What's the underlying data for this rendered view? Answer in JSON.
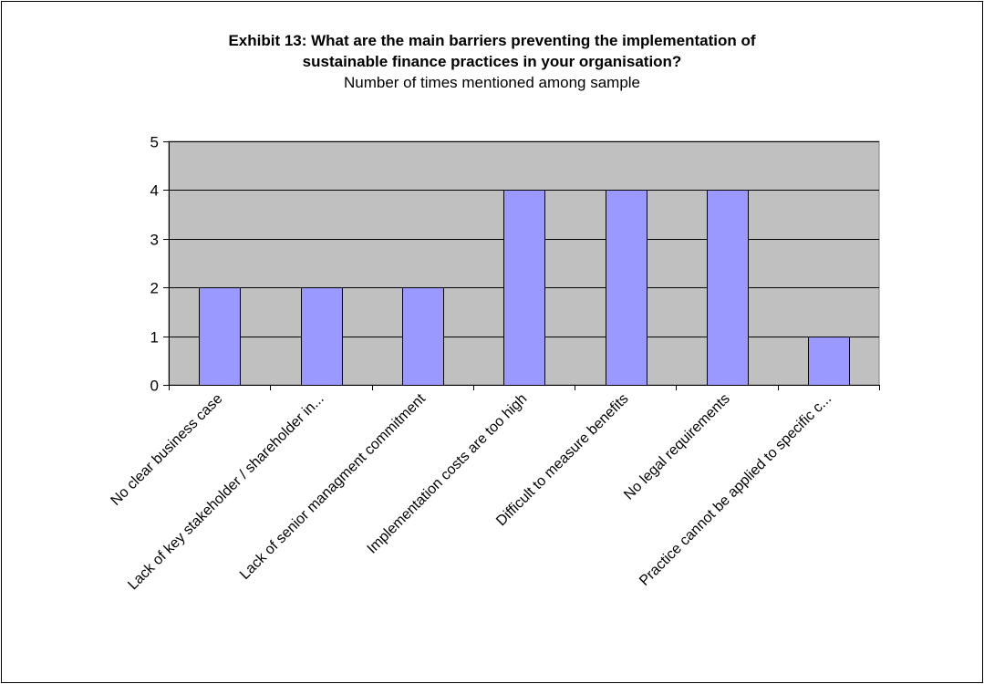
{
  "chart_data": {
    "type": "bar",
    "title_line1": "Exhibit 13: What are the main barriers preventing the implementation of",
    "title_line2": "sustainable finance practices in your organisation?",
    "subtitle": "Number of times mentioned among sample",
    "categories": [
      "No clear business case",
      "Lack of key stakeholder / shareholder in...",
      "Lack of senior managment commitment",
      "Implementation costs are too high",
      "Difficult to measure benefits",
      "No legal requirements",
      "Practice cannot be applied to specific c..."
    ],
    "values": [
      2,
      2,
      2,
      4,
      4,
      4,
      1
    ],
    "ylim": [
      0,
      5
    ],
    "yticks": [
      0,
      1,
      2,
      3,
      4,
      5
    ],
    "grid": true,
    "colors": {
      "bar_fill": "#9999ff",
      "bar_stroke": "#000000",
      "plot_background": "#c0c0c0",
      "gridline": "#000000"
    }
  }
}
